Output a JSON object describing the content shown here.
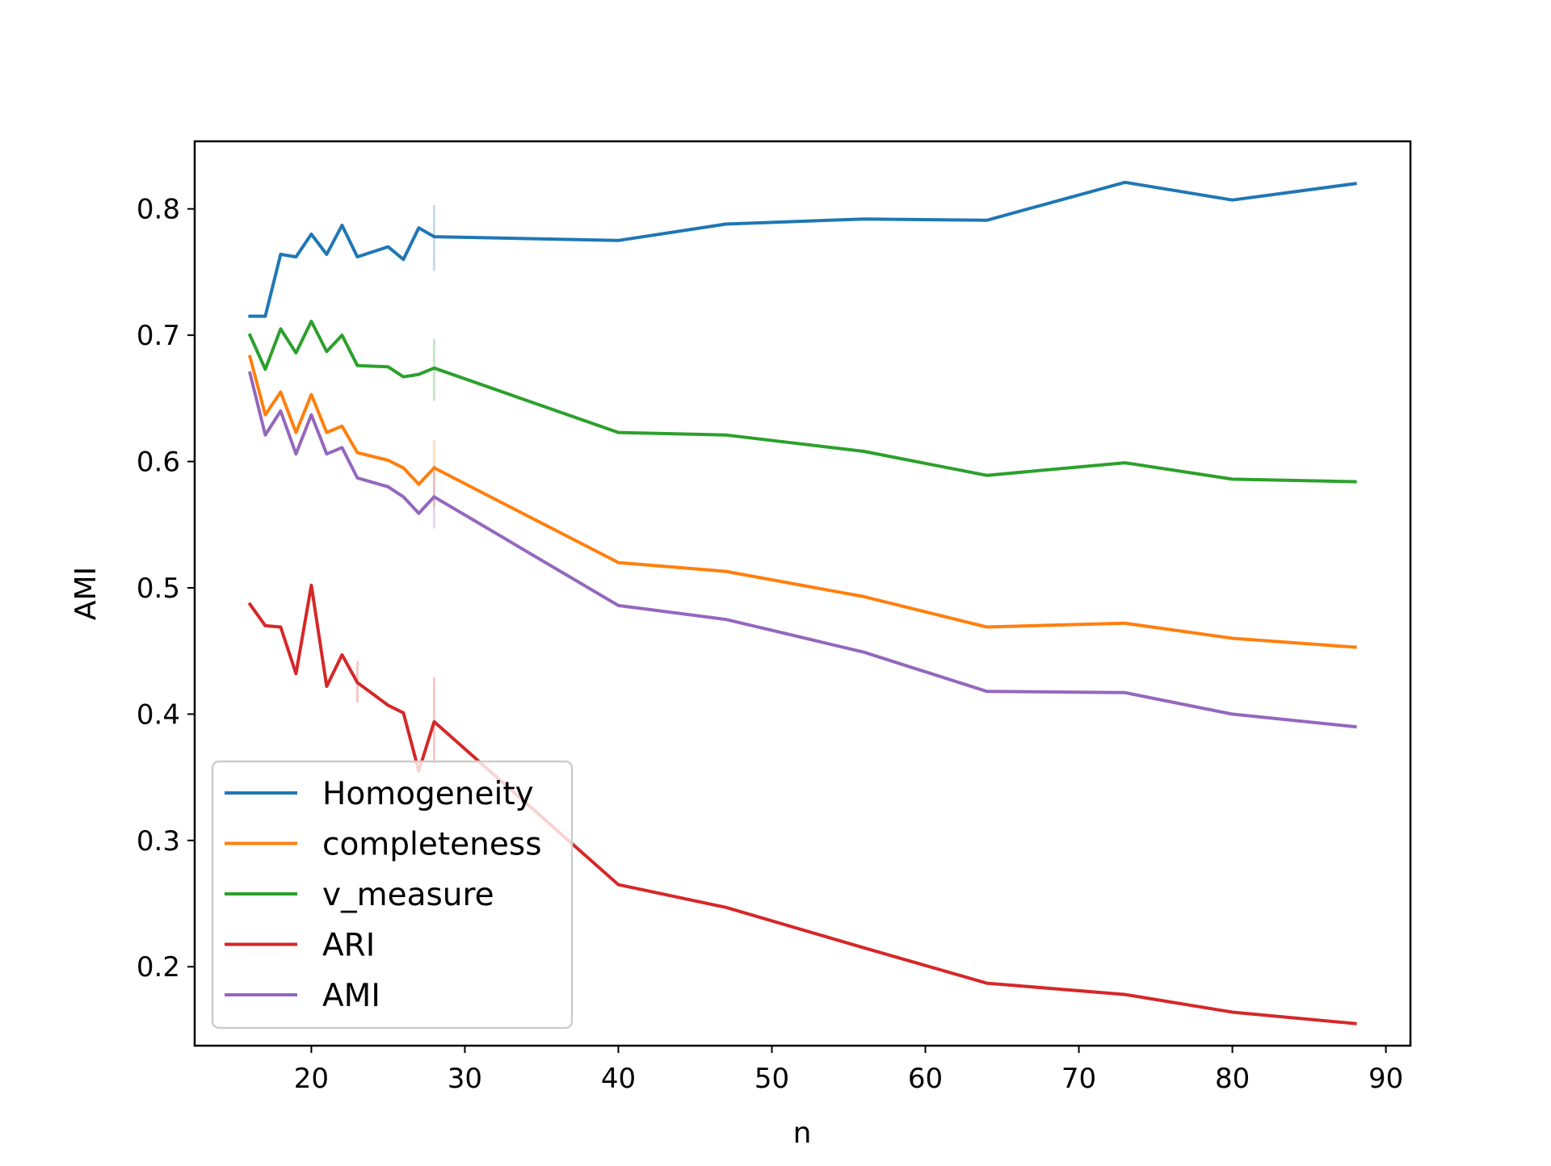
{
  "chart_data": {
    "type": "line",
    "title": "",
    "xlabel": "n",
    "ylabel": "AMI",
    "xlim": [
      12.4,
      91.6
    ],
    "ylim": [
      0.1375,
      0.8535
    ],
    "xticks": [
      20,
      30,
      40,
      50,
      60,
      70,
      80,
      90
    ],
    "yticks": [
      0.2,
      0.3,
      0.4,
      0.5,
      0.6,
      0.7,
      0.8
    ],
    "grid": false,
    "legend_position": "lower-left",
    "x": [
      16,
      17,
      18,
      19,
      20,
      21,
      22,
      23,
      25,
      26,
      27,
      28,
      40,
      47,
      56,
      64,
      73,
      80,
      88
    ],
    "series": [
      {
        "name": "Homogeneity",
        "color": "#1f77b4",
        "values": [
          0.715,
          0.715,
          0.764,
          0.762,
          0.78,
          0.764,
          0.787,
          0.762,
          0.77,
          0.76,
          0.785,
          0.778,
          0.775,
          0.788,
          0.792,
          0.791,
          0.821,
          0.807,
          0.82
        ]
      },
      {
        "name": "completeness",
        "color": "#ff7f0e",
        "values": [
          0.683,
          0.637,
          0.655,
          0.623,
          0.653,
          0.623,
          0.628,
          0.607,
          0.601,
          0.595,
          0.582,
          0.595,
          0.52,
          0.513,
          0.493,
          0.469,
          0.472,
          0.46,
          0.453
        ]
      },
      {
        "name": "v_measure",
        "color": "#2ca02c",
        "values": [
          0.7,
          0.673,
          0.705,
          0.686,
          0.711,
          0.687,
          0.7,
          0.676,
          0.675,
          0.667,
          0.669,
          0.674,
          0.623,
          0.621,
          0.608,
          0.589,
          0.599,
          0.586,
          0.584
        ]
      },
      {
        "name": "ARI",
        "color": "#d62728",
        "values": [
          0.487,
          0.47,
          0.469,
          0.432,
          0.502,
          0.422,
          0.447,
          0.425,
          0.407,
          0.401,
          0.355,
          0.394,
          0.265,
          0.247,
          0.215,
          0.187,
          0.178,
          0.164,
          0.155
        ]
      },
      {
        "name": "AMI",
        "color": "#9467bd",
        "values": [
          0.67,
          0.621,
          0.64,
          0.606,
          0.637,
          0.606,
          0.611,
          0.587,
          0.58,
          0.572,
          0.559,
          0.572,
          0.486,
          0.475,
          0.449,
          0.418,
          0.417,
          0.4,
          0.39
        ]
      }
    ],
    "markers": [
      {
        "series": "Homogeneity",
        "x": 28,
        "low": 0.751,
        "high": 0.803
      },
      {
        "series": "v_measure",
        "x": 28,
        "low": 0.648,
        "high": 0.697
      },
      {
        "series": "completeness",
        "x": 28,
        "low": 0.564,
        "high": 0.617
      },
      {
        "series": "AMI",
        "x": 28,
        "low": 0.547,
        "high": 0.597
      },
      {
        "series": "ARI",
        "x": 23,
        "low": 0.409,
        "high": 0.442
      },
      {
        "series": "ARI",
        "x": 28,
        "low": 0.358,
        "high": 0.429
      }
    ]
  }
}
